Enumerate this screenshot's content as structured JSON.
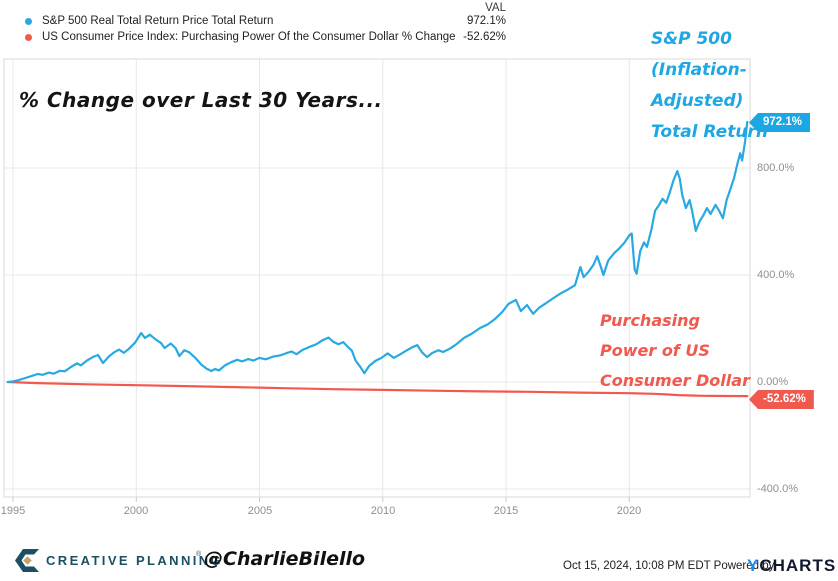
{
  "header": {
    "val_column_label": "VAL",
    "legend": [
      {
        "name": "S&P 500 Real Total Return Price Total Return",
        "value": "972.1%",
        "color": "#29a9e1"
      },
      {
        "name": "US Consumer Price Index: Purchasing Power Of the Consumer Dollar % Change",
        "value": "-52.62%",
        "color": "#f2594e"
      }
    ]
  },
  "annotations": {
    "title": "% Change over Last 30 Years...",
    "sp500_line1": "S&P 500",
    "sp500_line2": "(Inflation-Adjusted)",
    "sp500_line3": "Total Return",
    "dollar_line1": "Purchasing",
    "dollar_line2": "Power of US",
    "dollar_line3": "Consumer Dollar"
  },
  "badges": {
    "sp500_value": "972.1%",
    "dollar_value": "-52.62%"
  },
  "footer": {
    "brand": "CREATIVE PLANNING",
    "brand_mark": "®",
    "handle": "@CharlieBilello",
    "timestamp": "Oct 15, 2024, 10:08 PM EDT",
    "powered_by": "Powered by",
    "ycharts_y": "Y",
    "ycharts_rest": "CHARTS"
  },
  "chart_data": {
    "type": "line",
    "title": "% Change over Last 30 Years...",
    "xlabel": "",
    "ylabel": "% Change",
    "x_range": [
      1994.79,
      2024.79
    ],
    "ylim": [
      -480,
      1060
    ],
    "grid": true,
    "legend_position": "top-left",
    "x_ticks": [
      1995,
      2000,
      2005,
      2010,
      2015,
      2020
    ],
    "x_tick_labels": [
      "1995",
      "2000",
      "2005",
      "2010",
      "2015",
      "2020"
    ],
    "y_ticks": {
      "values": [
        800,
        400,
        0,
        -400
      ],
      "labels": [
        "800.0%",
        "400.0%",
        "0.00%",
        "-400.0%"
      ]
    },
    "end_labels": [
      {
        "series": "S&P 500 Real Total Return Price Total Return",
        "label": "972.1%"
      },
      {
        "series": "US Consumer Price Index: Purchasing Power Of the Consumer Dollar % Change",
        "label": "-52.62%"
      }
    ],
    "series": [
      {
        "name": "S&P 500 Real Total Return Price Total Return",
        "color": "#29a9e1",
        "final_value": 972.1,
        "points": [
          [
            1994.79,
            0
          ],
          [
            1995.0,
            2
          ],
          [
            1995.25,
            8
          ],
          [
            1995.5,
            15
          ],
          [
            1995.75,
            22
          ],
          [
            1996.0,
            30
          ],
          [
            1996.2,
            27
          ],
          [
            1996.45,
            35
          ],
          [
            1996.65,
            31
          ],
          [
            1996.9,
            42
          ],
          [
            1997.1,
            40
          ],
          [
            1997.35,
            56
          ],
          [
            1997.6,
            70
          ],
          [
            1997.75,
            62
          ],
          [
            1998.0,
            80
          ],
          [
            1998.25,
            94
          ],
          [
            1998.45,
            101
          ],
          [
            1998.65,
            71
          ],
          [
            1998.9,
            96
          ],
          [
            1999.1,
            111
          ],
          [
            1999.3,
            121
          ],
          [
            1999.5,
            109
          ],
          [
            1999.7,
            124
          ],
          [
            1999.95,
            147
          ],
          [
            2000.2,
            183
          ],
          [
            2000.35,
            165
          ],
          [
            2000.55,
            177
          ],
          [
            2000.8,
            158
          ],
          [
            2001.0,
            146
          ],
          [
            2001.15,
            127
          ],
          [
            2001.4,
            144
          ],
          [
            2001.6,
            126
          ],
          [
            2001.75,
            97
          ],
          [
            2001.95,
            119
          ],
          [
            2002.15,
            111
          ],
          [
            2002.4,
            90
          ],
          [
            2002.65,
            64
          ],
          [
            2002.85,
            50
          ],
          [
            2003.05,
            41
          ],
          [
            2003.2,
            49
          ],
          [
            2003.35,
            43
          ],
          [
            2003.6,
            62
          ],
          [
            2003.85,
            74
          ],
          [
            2004.1,
            83
          ],
          [
            2004.3,
            77
          ],
          [
            2004.55,
            86
          ],
          [
            2004.75,
            80
          ],
          [
            2005.0,
            90
          ],
          [
            2005.25,
            85
          ],
          [
            2005.55,
            95
          ],
          [
            2005.85,
            100
          ],
          [
            2006.1,
            108
          ],
          [
            2006.3,
            114
          ],
          [
            2006.5,
            104
          ],
          [
            2006.75,
            120
          ],
          [
            2007.0,
            130
          ],
          [
            2007.3,
            141
          ],
          [
            2007.55,
            156
          ],
          [
            2007.8,
            166
          ],
          [
            2008.0,
            150
          ],
          [
            2008.2,
            141
          ],
          [
            2008.4,
            149
          ],
          [
            2008.6,
            130
          ],
          [
            2008.75,
            117
          ],
          [
            2008.9,
            80
          ],
          [
            2009.1,
            55
          ],
          [
            2009.25,
            33
          ],
          [
            2009.45,
            60
          ],
          [
            2009.7,
            79
          ],
          [
            2009.95,
            90
          ],
          [
            2010.2,
            107
          ],
          [
            2010.45,
            90
          ],
          [
            2010.7,
            103
          ],
          [
            2010.95,
            117
          ],
          [
            2011.2,
            130
          ],
          [
            2011.4,
            138
          ],
          [
            2011.6,
            110
          ],
          [
            2011.8,
            93
          ],
          [
            2012.0,
            108
          ],
          [
            2012.25,
            119
          ],
          [
            2012.45,
            112
          ],
          [
            2012.75,
            126
          ],
          [
            2013.0,
            142
          ],
          [
            2013.3,
            165
          ],
          [
            2013.6,
            180
          ],
          [
            2013.95,
            202
          ],
          [
            2014.25,
            215
          ],
          [
            2014.55,
            235
          ],
          [
            2014.85,
            262
          ],
          [
            2015.1,
            292
          ],
          [
            2015.4,
            307
          ],
          [
            2015.6,
            265
          ],
          [
            2015.85,
            288
          ],
          [
            2016.1,
            255
          ],
          [
            2016.35,
            278
          ],
          [
            2016.6,
            293
          ],
          [
            2016.9,
            312
          ],
          [
            2017.2,
            330
          ],
          [
            2017.5,
            345
          ],
          [
            2017.8,
            362
          ],
          [
            2018.02,
            430
          ],
          [
            2018.15,
            392
          ],
          [
            2018.35,
            412
          ],
          [
            2018.55,
            438
          ],
          [
            2018.7,
            470
          ],
          [
            2018.85,
            430
          ],
          [
            2018.95,
            400
          ],
          [
            2019.15,
            455
          ],
          [
            2019.4,
            483
          ],
          [
            2019.6,
            500
          ],
          [
            2019.8,
            520
          ],
          [
            2020.0,
            548
          ],
          [
            2020.1,
            555
          ],
          [
            2020.22,
            420
          ],
          [
            2020.3,
            405
          ],
          [
            2020.45,
            490
          ],
          [
            2020.6,
            522
          ],
          [
            2020.72,
            505
          ],
          [
            2020.9,
            570
          ],
          [
            2021.05,
            640
          ],
          [
            2021.2,
            660
          ],
          [
            2021.35,
            685
          ],
          [
            2021.5,
            670
          ],
          [
            2021.65,
            710
          ],
          [
            2021.8,
            755
          ],
          [
            2021.95,
            788
          ],
          [
            2022.05,
            760
          ],
          [
            2022.15,
            700
          ],
          [
            2022.3,
            650
          ],
          [
            2022.45,
            680
          ],
          [
            2022.55,
            640
          ],
          [
            2022.7,
            565
          ],
          [
            2022.85,
            600
          ],
          [
            2023.0,
            622
          ],
          [
            2023.15,
            650
          ],
          [
            2023.3,
            628
          ],
          [
            2023.5,
            662
          ],
          [
            2023.65,
            640
          ],
          [
            2023.8,
            612
          ],
          [
            2023.95,
            680
          ],
          [
            2024.1,
            720
          ],
          [
            2024.25,
            762
          ],
          [
            2024.4,
            820
          ],
          [
            2024.5,
            855
          ],
          [
            2024.58,
            828
          ],
          [
            2024.7,
            900
          ],
          [
            2024.79,
            972.1
          ]
        ]
      },
      {
        "name": "US Consumer Price Index: Purchasing Power Of the Consumer Dollar % Change",
        "color": "#f2594e",
        "final_value": -52.62,
        "points": [
          [
            1994.79,
            0
          ],
          [
            1996,
            -4
          ],
          [
            1998,
            -8.5
          ],
          [
            2000,
            -12
          ],
          [
            2002,
            -15.5
          ],
          [
            2004,
            -19
          ],
          [
            2006,
            -23
          ],
          [
            2008,
            -27
          ],
          [
            2010,
            -29.5
          ],
          [
            2012,
            -32.5
          ],
          [
            2014,
            -35
          ],
          [
            2016,
            -36.5
          ],
          [
            2018,
            -39.5
          ],
          [
            2020,
            -42
          ],
          [
            2021,
            -44
          ],
          [
            2021.5,
            -46.5
          ],
          [
            2022,
            -49
          ],
          [
            2022.5,
            -50.5
          ],
          [
            2023,
            -51.5
          ],
          [
            2024,
            -52.3
          ],
          [
            2024.79,
            -52.62
          ]
        ]
      }
    ]
  }
}
